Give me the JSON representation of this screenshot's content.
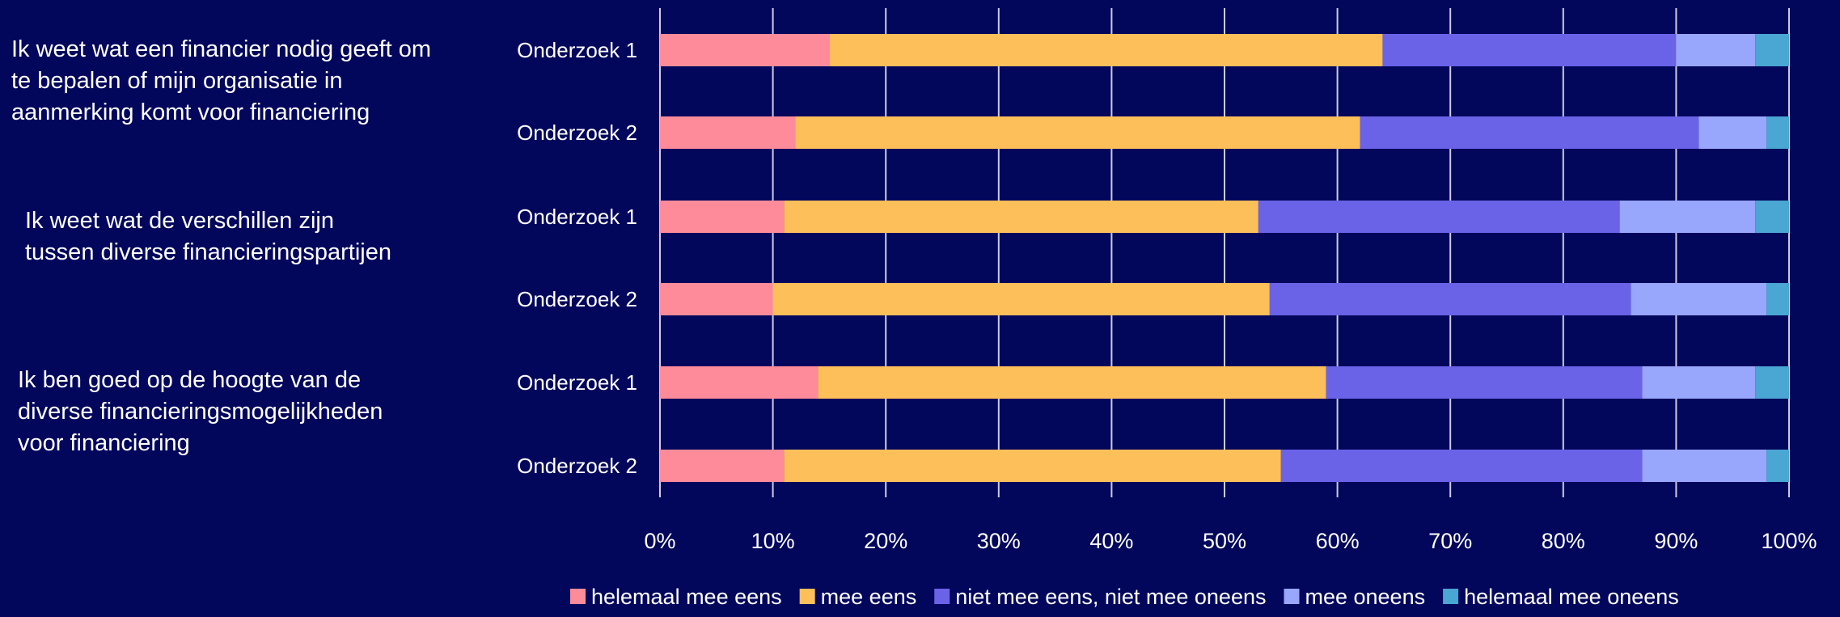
{
  "background": "#03075c",
  "chart_data": {
    "type": "bar",
    "orientation": "horizontal",
    "stacked": true,
    "groups": [
      {
        "question": "Ik weet wat een financier nodig geeft om\nte bepalen of mijn organisatie in\naanmerking komt voor financiering",
        "rows": [
          {
            "label": "Onderzoek 1",
            "values": [
              15,
              49,
              26,
              7,
              3
            ]
          },
          {
            "label": "Onderzoek 2",
            "values": [
              12,
              50,
              30,
              6,
              2
            ]
          }
        ]
      },
      {
        "question": "Ik weet wat de verschillen zijn\ntussen diverse financieringspartijen",
        "rows": [
          {
            "label": "Onderzoek 1",
            "values": [
              11,
              42,
              32,
              12,
              3
            ]
          },
          {
            "label": "Onderzoek 2",
            "values": [
              10,
              44,
              32,
              12,
              2
            ]
          }
        ]
      },
      {
        "question": "Ik ben goed op de hoogte van de\ndiverse financieringsmogelijkheden\nvoor financiering",
        "rows": [
          {
            "label": "Onderzoek 1",
            "values": [
              14,
              45,
              28,
              10,
              3
            ]
          },
          {
            "label": "Onderzoek 2",
            "values": [
              11,
              44,
              32,
              11,
              2
            ]
          }
        ]
      }
    ],
    "series": [
      {
        "name": "helemaal mee eens",
        "color": "#fd8b9a"
      },
      {
        "name": "mee eens",
        "color": "#fdbf5a"
      },
      {
        "name": "niet mee eens, niet mee oneens",
        "color": "#6a63e8"
      },
      {
        "name": "mee oneens",
        "color": "#98a6fb"
      },
      {
        "name": "helemaal mee oneens",
        "color": "#4aa6d2"
      }
    ],
    "xlim": [
      0,
      100
    ],
    "xticks": [
      "0%",
      "10%",
      "20%",
      "30%",
      "40%",
      "50%",
      "60%",
      "70%",
      "80%",
      "90%",
      "100%"
    ],
    "grid": true,
    "legend_position": "bottom"
  }
}
